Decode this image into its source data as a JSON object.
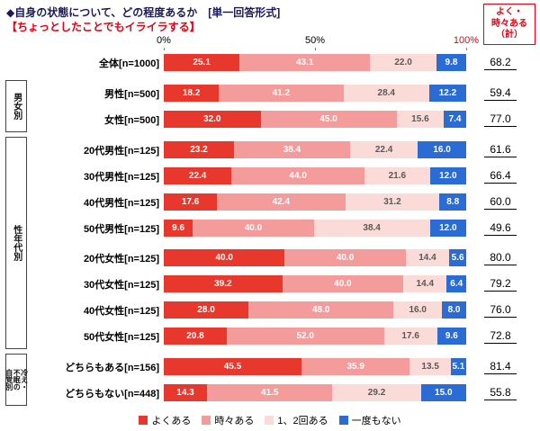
{
  "title": "◆自身の状態について、どの程度あるか　[単一回答形式]",
  "subtitle": "【ちょっとしたことでもイライラする】",
  "summary_header": [
    "よく・",
    "時々ある",
    "（計）"
  ],
  "colors": {
    "accent_red": "#e60012",
    "title_navy": "#1a1a5a",
    "series_red": "#e8382d",
    "series_pink": "#f49c9c",
    "series_pale_pink": "#fbdbd8",
    "series_blue": "#2a6bd4"
  },
  "axis": {
    "ticks": [
      {
        "label": "0%",
        "pos": 0
      },
      {
        "label": "50%",
        "pos": 50
      },
      {
        "label": "100%",
        "pos": 100
      }
    ]
  },
  "chart_data": {
    "type": "bar",
    "stacked": true,
    "orientation": "horizontal",
    "unit": "%",
    "x_range": [
      0,
      100
    ],
    "title": "◆自身の状態について、どの程度あるか　[単一回答形式]",
    "subtitle": "【ちょっとしたことでもイライラする】",
    "summary_column": "よく・時々ある（計）",
    "series": [
      {
        "name": "よくある",
        "color": "#e8382d",
        "label_color": "#ffffff"
      },
      {
        "name": "時々ある",
        "color": "#f49c9c",
        "label_color": "#ffffff"
      },
      {
        "name": "1、2回ある",
        "color": "#fbdbd8",
        "label_color": "#595959"
      },
      {
        "name": "一度もない",
        "color": "#2a6bd4",
        "label_color": "#ffffff"
      }
    ],
    "legend": [
      "よくある",
      "時々ある",
      "1、2回ある",
      "一度もない"
    ],
    "groups": [
      {
        "label": null,
        "rows": [
          {
            "label": "全体[n=1000]",
            "values": [
              25.1,
              43.1,
              22.0,
              9.8
            ],
            "total": 68.2
          }
        ]
      },
      {
        "label": [
          "男女別"
        ],
        "rows": [
          {
            "label": "男性[n=500]",
            "values": [
              18.2,
              41.2,
              28.4,
              12.2
            ],
            "total": 59.4
          },
          {
            "label": "女性[n=500]",
            "values": [
              32.0,
              45.0,
              15.6,
              7.4
            ],
            "total": 77.0
          }
        ]
      },
      {
        "label": [
          "性年代別"
        ],
        "rows": [
          {
            "label": "20代男性[n=125]",
            "values": [
              23.2,
              38.4,
              22.4,
              16.0
            ],
            "total": 61.6
          },
          {
            "label": "30代男性[n=125]",
            "values": [
              22.4,
              44.0,
              21.6,
              12.0
            ],
            "total": 66.4
          },
          {
            "label": "40代男性[n=125]",
            "values": [
              17.6,
              42.4,
              31.2,
              8.8
            ],
            "total": 60.0
          },
          {
            "label": "50代男性[n=125]",
            "values": [
              9.6,
              40.0,
              38.4,
              12.0
            ],
            "total": 49.6
          },
          {
            "label": "20代女性[n=125]",
            "values": [
              40.0,
              40.0,
              14.4,
              5.6
            ],
            "total": 80.0,
            "gap_before": true
          },
          {
            "label": "30代女性[n=125]",
            "values": [
              39.2,
              40.0,
              14.4,
              6.4
            ],
            "total": 79.2
          },
          {
            "label": "40代女性[n=125]",
            "values": [
              28.0,
              48.0,
              16.0,
              8.0
            ],
            "total": 76.0
          },
          {
            "label": "50代女性[n=125]",
            "values": [
              20.8,
              52.0,
              17.6,
              9.6
            ],
            "total": 72.8
          }
        ]
      },
      {
        "label": [
          "冷え・",
          "不眠の",
          "自覚別"
        ],
        "rows": [
          {
            "label": "どちらもある[n=156]",
            "values": [
              45.5,
              35.9,
              13.5,
              5.1
            ],
            "total": 81.4
          },
          {
            "label": "どちらもない[n=448]",
            "values": [
              14.3,
              41.5,
              29.2,
              15.0
            ],
            "total": 55.8
          }
        ]
      }
    ]
  }
}
